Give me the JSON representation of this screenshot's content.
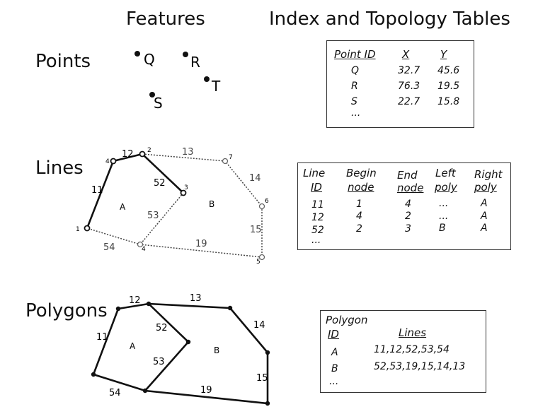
{
  "headings": {
    "features": "Features",
    "tables": "Index and Topology Tables"
  },
  "sections": {
    "points": "Points",
    "lines": "Lines",
    "polygons": "Polygons"
  },
  "points_figure": {
    "labels": [
      "Q",
      "R",
      "T",
      "S"
    ]
  },
  "lines_figure": {
    "node_labels": [
      "1",
      "2",
      "3",
      "4",
      "4",
      "5",
      "6",
      "7"
    ],
    "line_labels": [
      "12",
      "13",
      "11",
      "52",
      "14",
      "53",
      "15",
      "54",
      "19"
    ],
    "poly_labels": [
      "A",
      "B"
    ]
  },
  "polygons_figure": {
    "line_labels": [
      "12",
      "13",
      "11",
      "52",
      "14",
      "53",
      "15",
      "54",
      "19"
    ],
    "poly_labels": [
      "A",
      "B"
    ]
  },
  "point_table": {
    "headers": [
      "Point ID",
      "X",
      "Y"
    ],
    "rows": [
      [
        "Q",
        "32.7",
        "45.6"
      ],
      [
        "R",
        "76.3",
        "19.5"
      ],
      [
        "S",
        "22.7",
        "15.8"
      ]
    ],
    "more": "..."
  },
  "line_table": {
    "headers": [
      [
        "Line",
        "ID"
      ],
      [
        "Begin",
        "node"
      ],
      [
        "End",
        "node"
      ],
      [
        "Left",
        "poly"
      ],
      [
        "Right",
        "poly"
      ]
    ],
    "rows": [
      [
        "11",
        "1",
        "4",
        "...",
        "A"
      ],
      [
        "12",
        "4",
        "2",
        "...",
        "A"
      ],
      [
        "52",
        "2",
        "3",
        "B",
        "A"
      ]
    ],
    "more": "..."
  },
  "polygon_table": {
    "title": "Polygon",
    "headers": [
      "ID",
      "Lines"
    ],
    "rows": [
      [
        "A",
        "11,12,52,53,54"
      ],
      [
        "B",
        "52,53,19,15,14,13"
      ]
    ],
    "more": "..."
  }
}
